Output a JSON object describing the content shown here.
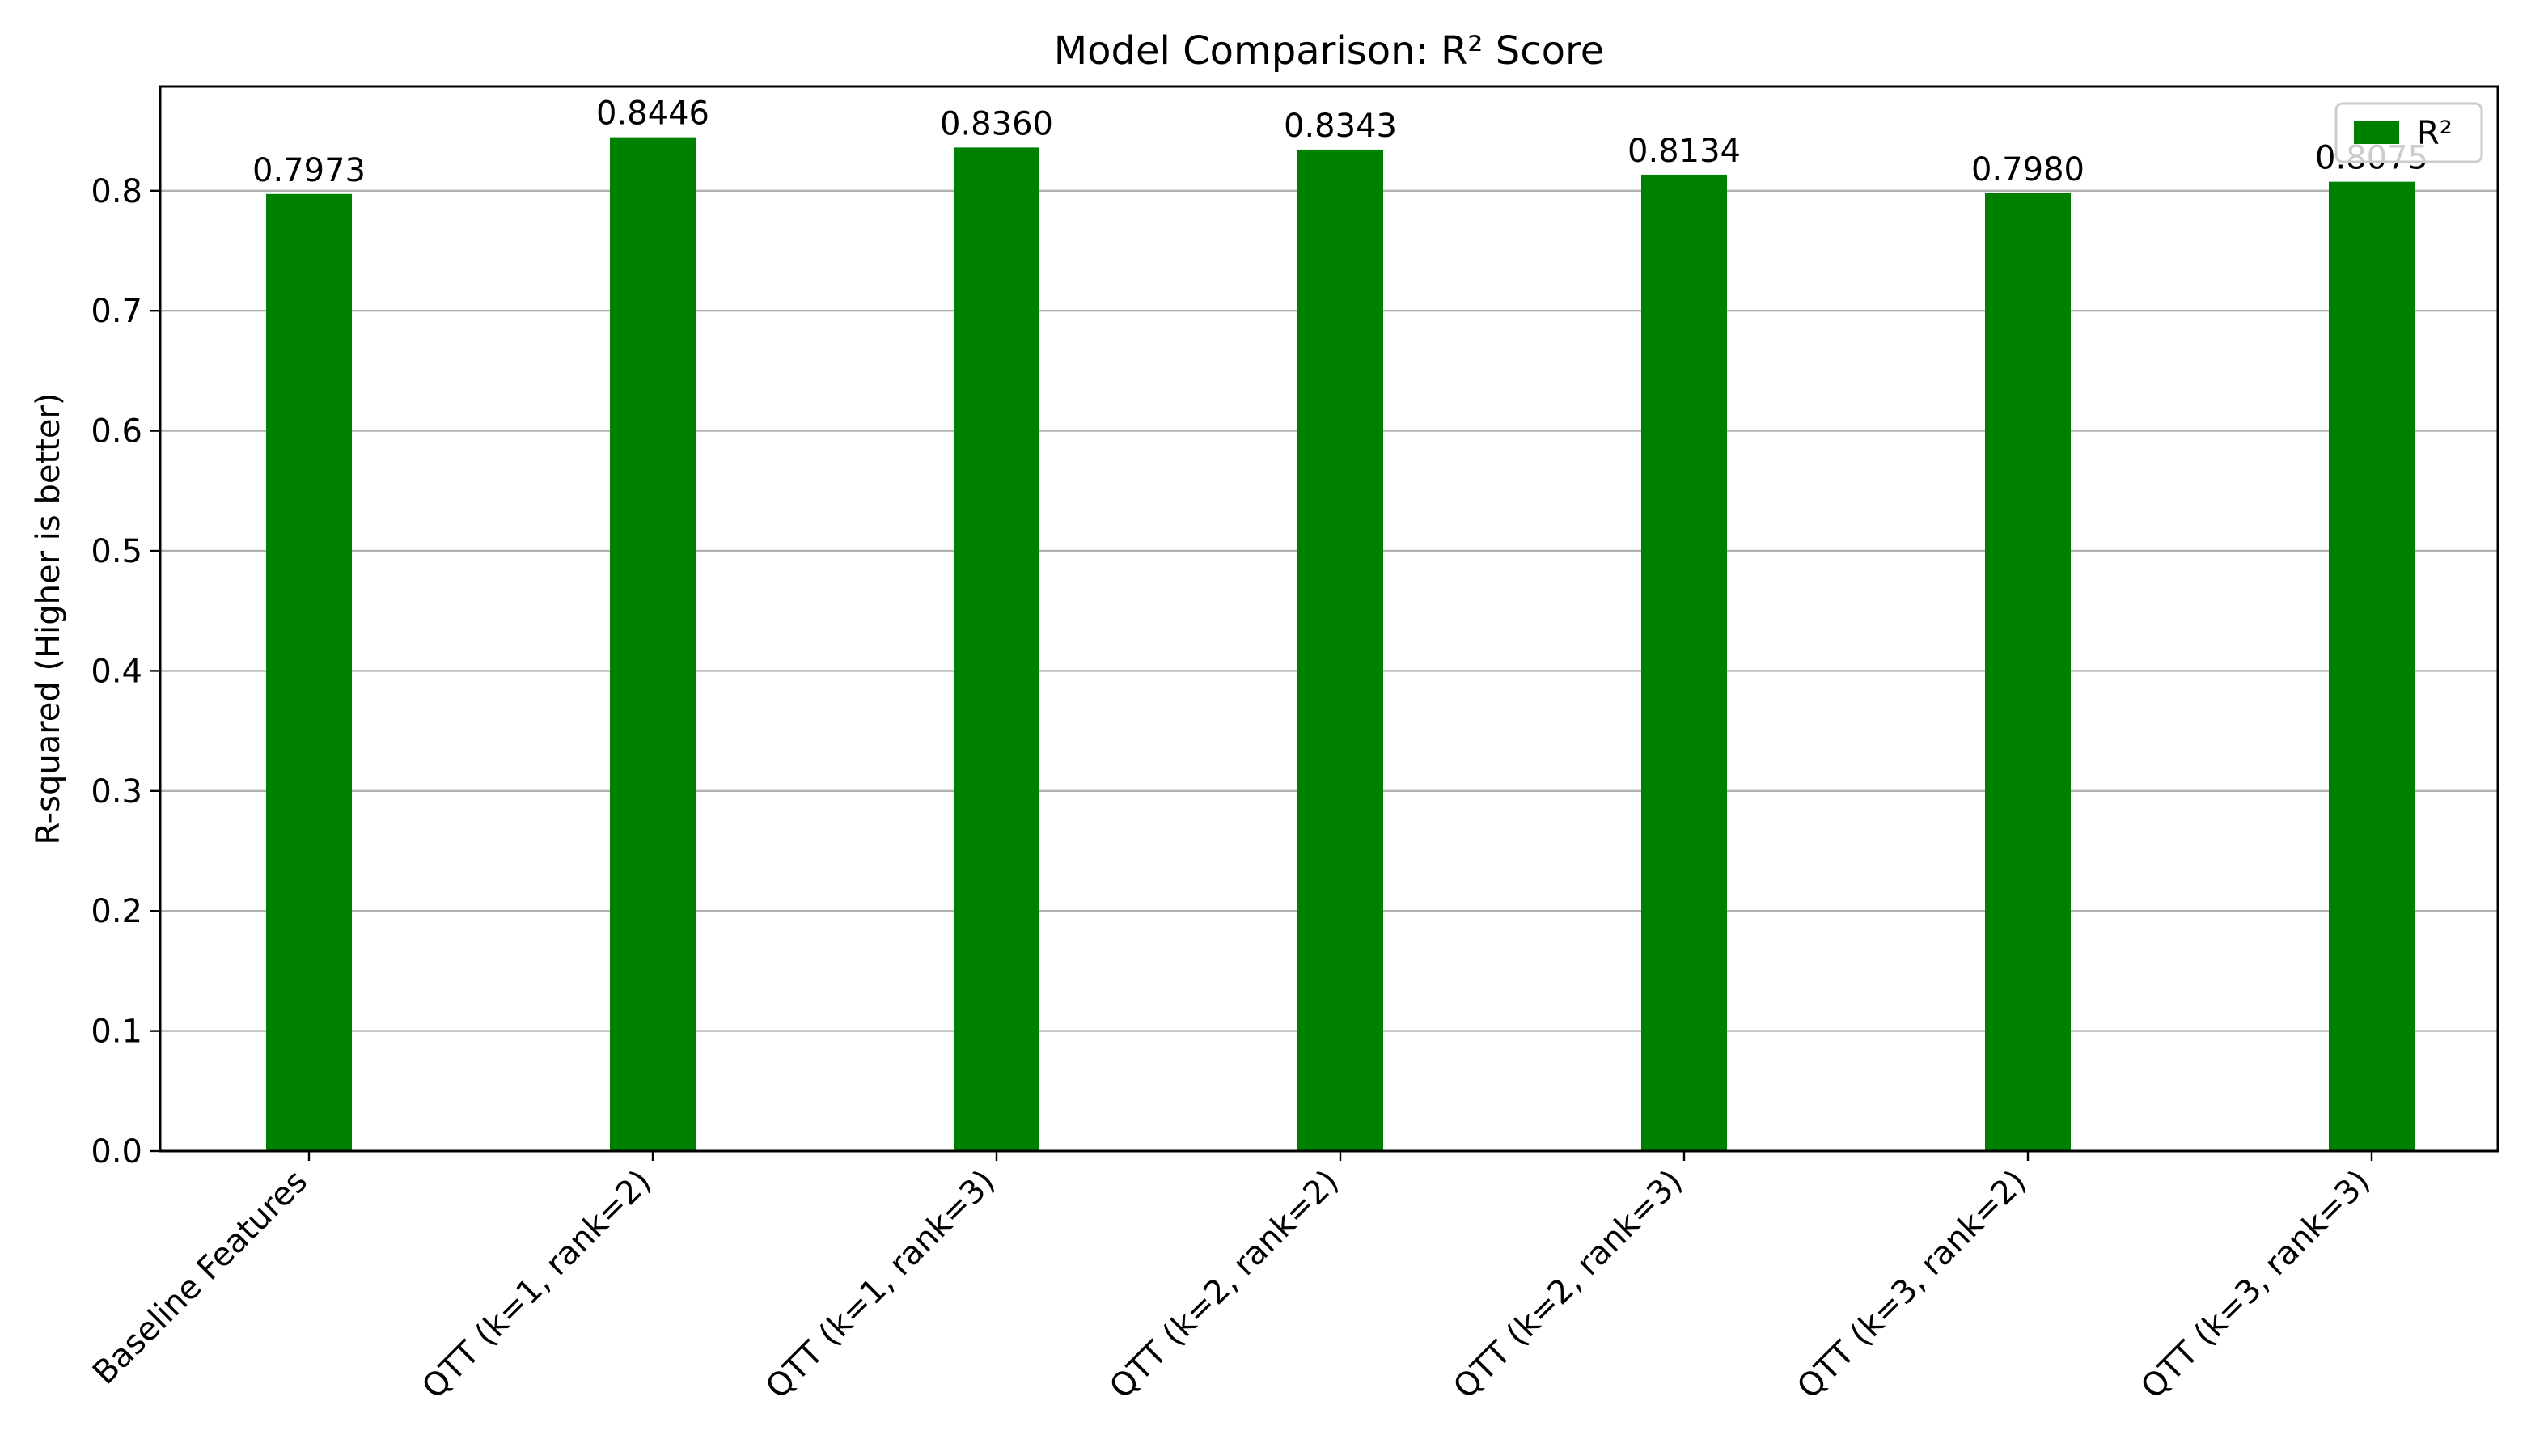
{
  "chart_data": {
    "type": "bar",
    "title": "Model Comparison: R² Score",
    "xlabel": "",
    "ylabel": "R-squared (Higher is better)",
    "categories": [
      "Baseline Features",
      "QTT (k=1, rank=2)",
      "QTT (k=1, rank=3)",
      "QTT (k=2, rank=2)",
      "QTT (k=2, rank=3)",
      "QTT (k=3, rank=2)",
      "QTT (k=3, rank=3)"
    ],
    "series": [
      {
        "name": "R²",
        "color": "#008000",
        "values": [
          0.7973,
          0.8446,
          0.836,
          0.8343,
          0.8134,
          0.798,
          0.8075
        ],
        "labels": [
          "0.7973",
          "0.8446",
          "0.8360",
          "0.8343",
          "0.8134",
          "0.7980",
          "0.8075"
        ]
      }
    ],
    "ylim": [
      0,
      0.8868
    ],
    "yticks": [
      0.0,
      0.1,
      0.2,
      0.3,
      0.4,
      0.5,
      0.6,
      0.7,
      0.8
    ],
    "ytick_labels": [
      "0.0",
      "0.1",
      "0.2",
      "0.3",
      "0.4",
      "0.5",
      "0.6",
      "0.7",
      "0.8"
    ],
    "grid": "y-major",
    "legend_position": "top-right"
  }
}
